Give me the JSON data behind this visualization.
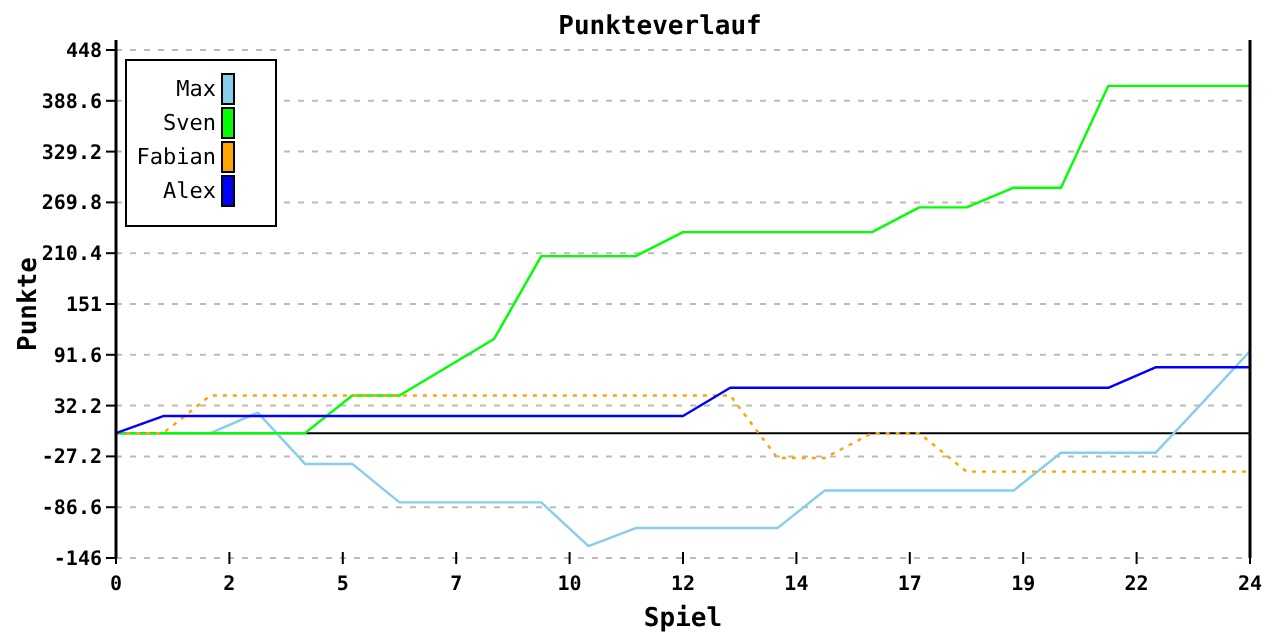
{
  "chart_data": {
    "type": "line",
    "title": "Punkteverlauf",
    "xlabel": "Spiel",
    "ylabel": "Punkte",
    "x": [
      0,
      1,
      2,
      3,
      4,
      5,
      6,
      7,
      8,
      9,
      10,
      11,
      12,
      13,
      14,
      15,
      16,
      17,
      18,
      19,
      20,
      21,
      22,
      23,
      24
    ],
    "series": [
      {
        "name": "Max",
        "color": "#87ceeb",
        "values": [
          0,
          0,
          0,
          24,
          -36,
          -36,
          -81,
          -81,
          -81,
          -81,
          -132,
          -111,
          -111,
          -111,
          -111,
          -67,
          -67,
          -67,
          -67,
          -67,
          -23,
          -23,
          -23,
          36,
          96
        ]
      },
      {
        "name": "Sven",
        "color": "#00ff00",
        "values": [
          0,
          0,
          0,
          0,
          0,
          44,
          44,
          77,
          110,
          207,
          207,
          207,
          235,
          235,
          235,
          235,
          235,
          264,
          264,
          287,
          287,
          406,
          406,
          406,
          406
        ]
      },
      {
        "name": "Fabian",
        "color": "#ffa500",
        "line_style": "dotted",
        "values": [
          0,
          0,
          44,
          44,
          44,
          44,
          44,
          44,
          44,
          44,
          44,
          44,
          44,
          44,
          -29,
          -29,
          0,
          0,
          -45,
          -45,
          -45,
          -45,
          -45,
          -45,
          -45
        ]
      },
      {
        "name": "Alex",
        "color": "#0000ff",
        "values": [
          0,
          20,
          20,
          20,
          20,
          20,
          20,
          20,
          20,
          20,
          20,
          20,
          20,
          53,
          53,
          53,
          53,
          53,
          53,
          53,
          53,
          53,
          77,
          77,
          77
        ]
      }
    ],
    "xlim": [
      0,
      24
    ],
    "xticks": [
      0,
      {
        "value": 2.4,
        "label": "2"
      },
      {
        "value": 4.8,
        "label": "5"
      },
      {
        "value": 7.2,
        "label": "7"
      },
      {
        "value": 9.6,
        "label": "10"
      },
      12,
      {
        "value": 14.4,
        "label": "14"
      },
      {
        "value": 16.8,
        "label": "17"
      },
      {
        "value": 19.2,
        "label": "19"
      },
      {
        "value": 21.6,
        "label": "22"
      },
      24
    ],
    "ylim": [
      -146,
      448
    ],
    "yticks": [
      -146,
      -86.6,
      -27.2,
      32.2,
      91.6,
      151,
      210.4,
      269.8,
      329.2,
      388.6,
      448
    ],
    "ref_lines": [
      {
        "axis": "y",
        "value": 0,
        "color": "#000000"
      }
    ],
    "grid": "y",
    "legend": "top left",
    "marker": "none",
    "line_style": "solid"
  }
}
